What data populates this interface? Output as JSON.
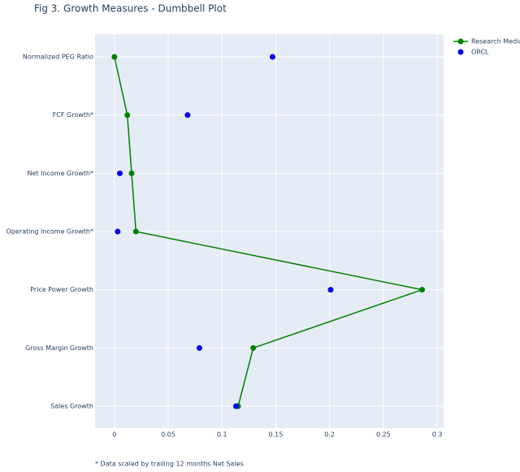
{
  "chart_data": {
    "type": "dumbbell",
    "title": "Fig 3. Growth Measures - Dumbbell Plot",
    "annotation": "* Data scaled by trailing 12 months Net Sales",
    "categories": [
      "Normalized PEG Ratio",
      "FCF Growth*",
      "Net Income Growth*",
      "Operating Income Growth*",
      "Price Power Growth",
      "Gross Margin Growth",
      "Sales Growth"
    ],
    "series": [
      {
        "name": "Research Median",
        "color": "#008000",
        "mode": "lines+markers",
        "values": [
          0.0,
          0.012,
          0.016,
          0.02,
          0.286,
          0.129,
          0.115
        ]
      },
      {
        "name": "ORCL",
        "color": "#0000ee",
        "mode": "markers",
        "values": [
          0.147,
          0.068,
          0.005,
          0.003,
          0.201,
          0.079,
          0.113
        ]
      }
    ],
    "xlim": [
      -0.018,
      0.306
    ],
    "xticks": [
      0,
      0.05,
      0.1,
      0.15,
      0.2,
      0.25,
      0.3
    ],
    "grid": true
  }
}
